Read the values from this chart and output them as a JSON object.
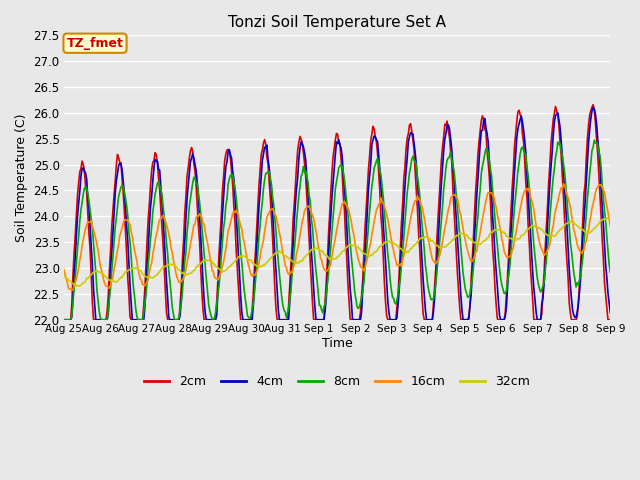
{
  "title": "Tonzi Soil Temperature Set A",
  "xlabel": "Time",
  "ylabel": "Soil Temperature (C)",
  "ylim": [
    22.0,
    27.5
  ],
  "annotation_text": "TZ_fmet",
  "annotation_bg": "#ffffcc",
  "annotation_border": "#cc8800",
  "annotation_text_color": "#cc0000",
  "bg_color": "#e8e8e8",
  "series": {
    "2cm": {
      "color": "#dd0000",
      "lw": 1.2
    },
    "4cm": {
      "color": "#0000cc",
      "lw": 1.2
    },
    "8cm": {
      "color": "#00aa00",
      "lw": 1.2
    },
    "16cm": {
      "color": "#ff8800",
      "lw": 1.2
    },
    "32cm": {
      "color": "#cccc00",
      "lw": 1.2
    }
  },
  "xtick_labels": [
    "Aug 25",
    "Aug 26",
    "Aug 27",
    "Aug 28",
    "Aug 29",
    "Aug 30",
    "Aug 31",
    "Sep 1",
    "Sep 2",
    "Sep 3",
    "Sep 4",
    "Sep 5",
    "Sep 6",
    "Sep 7",
    "Sep 8",
    "Sep 9"
  ],
  "n_points": 480,
  "days": 15
}
